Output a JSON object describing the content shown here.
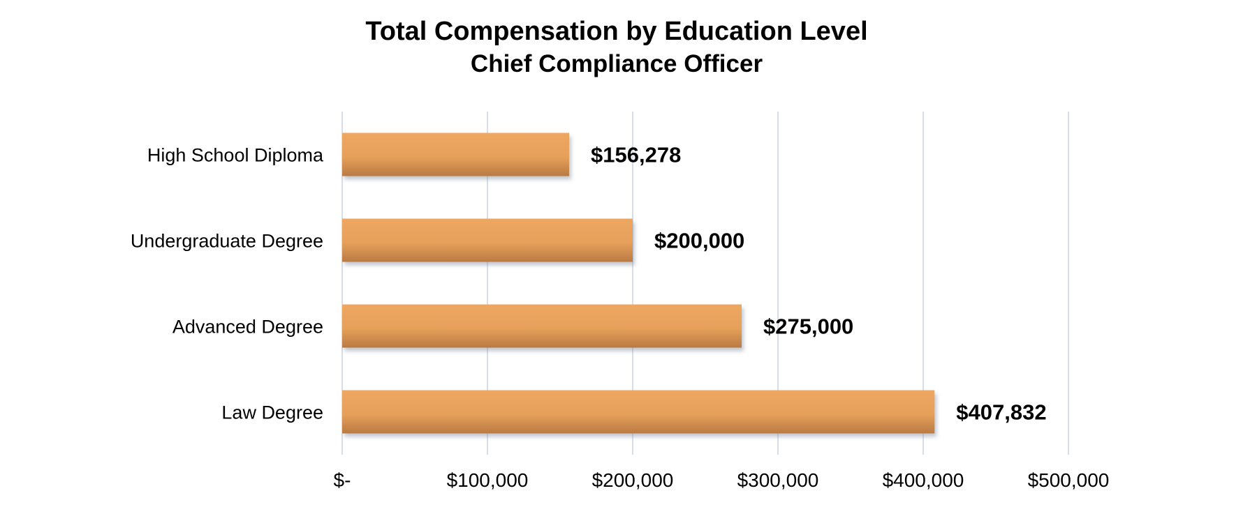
{
  "chart_data": {
    "type": "bar",
    "orientation": "horizontal",
    "title": "Total Compensation by Education Level",
    "subtitle": "Chief Compliance Officer",
    "categories": [
      "High School Diploma",
      "Undergraduate Degree",
      "Advanced Degree",
      "Law Degree"
    ],
    "values": [
      156278,
      200000,
      275000,
      407832
    ],
    "data_labels": [
      "$156,278",
      "$200,000",
      "$275,000",
      "$407,832"
    ],
    "xlim": [
      0,
      500000
    ],
    "x_ticks": [
      0,
      100000,
      200000,
      300000,
      400000,
      500000
    ],
    "x_tick_labels": [
      "$-",
      "$100,000",
      "$200,000",
      "$300,000",
      "$400,000",
      "$500,000"
    ],
    "grid": "vertical",
    "legend": "none",
    "colors": {
      "bar": "#E6A05A",
      "bar_shade": "#B97A43",
      "grid": "#D6DEEA",
      "text": "#000000"
    }
  }
}
